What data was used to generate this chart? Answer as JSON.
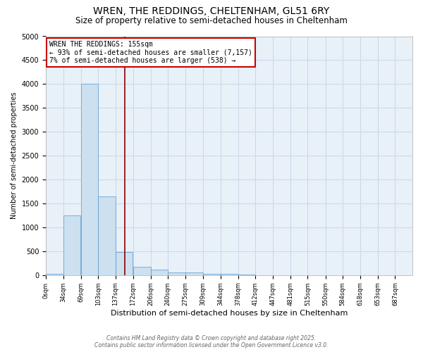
{
  "title1": "WREN, THE REDDINGS, CHELTENHAM, GL51 6RY",
  "title2": "Size of property relative to semi-detached houses in Cheltenham",
  "xlabel": "Distribution of semi-detached houses by size in Cheltenham",
  "ylabel": "Number of semi-detached properties",
  "footer1": "Contains HM Land Registry data © Crown copyright and database right 2025.",
  "footer2": "Contains public sector information licensed under the Open Government Licence v3.0.",
  "bins": [
    0,
    34,
    69,
    103,
    137,
    172,
    206,
    240,
    275,
    309,
    344,
    378,
    412,
    447,
    481,
    515,
    550,
    584,
    618,
    653,
    687
  ],
  "values": [
    30,
    1250,
    4000,
    1650,
    480,
    175,
    110,
    60,
    50,
    30,
    25,
    5,
    3,
    2,
    1,
    1,
    0,
    0,
    0,
    0
  ],
  "bar_color": "#cce0f0",
  "bar_edge_color": "#5599cc",
  "grid_color": "#c8d8e8",
  "bg_color": "#e8f0f8",
  "property_size": 155,
  "vline_color": "#8b0000",
  "annotation_text": "WREN THE REDDINGS: 155sqm\n← 93% of semi-detached houses are smaller (7,157)\n7% of semi-detached houses are larger (538) →",
  "annotation_box_color": "#cc0000",
  "ylim": [
    0,
    5000
  ],
  "yticks": [
    0,
    500,
    1000,
    1500,
    2000,
    2500,
    3000,
    3500,
    4000,
    4500,
    5000
  ],
  "tick_labels": [
    "0sqm",
    "34sqm",
    "69sqm",
    "103sqm",
    "137sqm",
    "172sqm",
    "206sqm",
    "240sqm",
    "275sqm",
    "309sqm",
    "344sqm",
    "378sqm",
    "412sqm",
    "447sqm",
    "481sqm",
    "515sqm",
    "550sqm",
    "584sqm",
    "618sqm",
    "653sqm",
    "687sqm"
  ]
}
